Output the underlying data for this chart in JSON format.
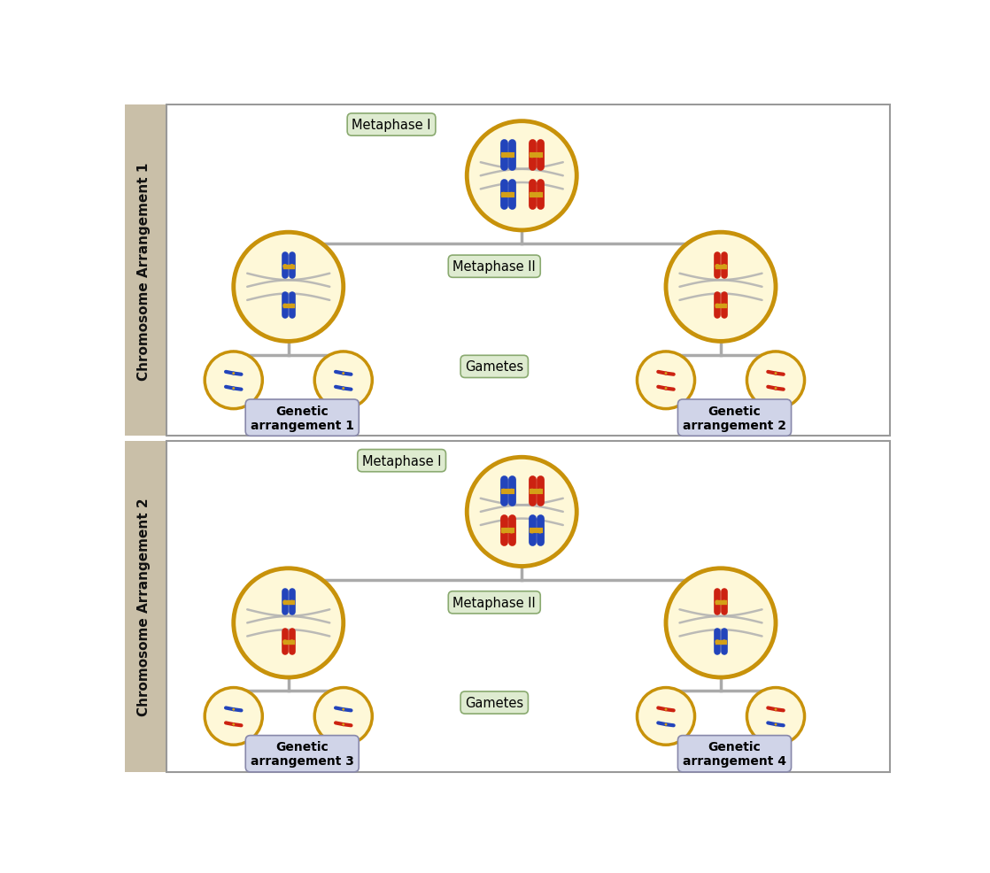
{
  "bg_color": "#ffffff",
  "sidebar_color": "#c9bfa8",
  "cell_fill": "#fef8d8",
  "cell_edge": "#c8920a",
  "spindle_color": "#b0b0b0",
  "blue_chr": "#2244bb",
  "red_chr": "#cc2211",
  "centromere_color": "#d4a017",
  "label_box_green": "#deebd0",
  "label_box_gray": "#d0d4e8",
  "arrow_color": "#aaaaaa",
  "title1": "Chromosome Arrangement 1",
  "title2": "Chromosome Arrangement 2",
  "metaphase1_label": "Metaphase I",
  "metaphase2_label": "Metaphase II",
  "gametes_label": "Gametes",
  "genetic_labels": [
    "Genetic\narrangement 1",
    "Genetic\narrangement 2",
    "Genetic\narrangement 3",
    "Genetic\narrangement 4"
  ]
}
